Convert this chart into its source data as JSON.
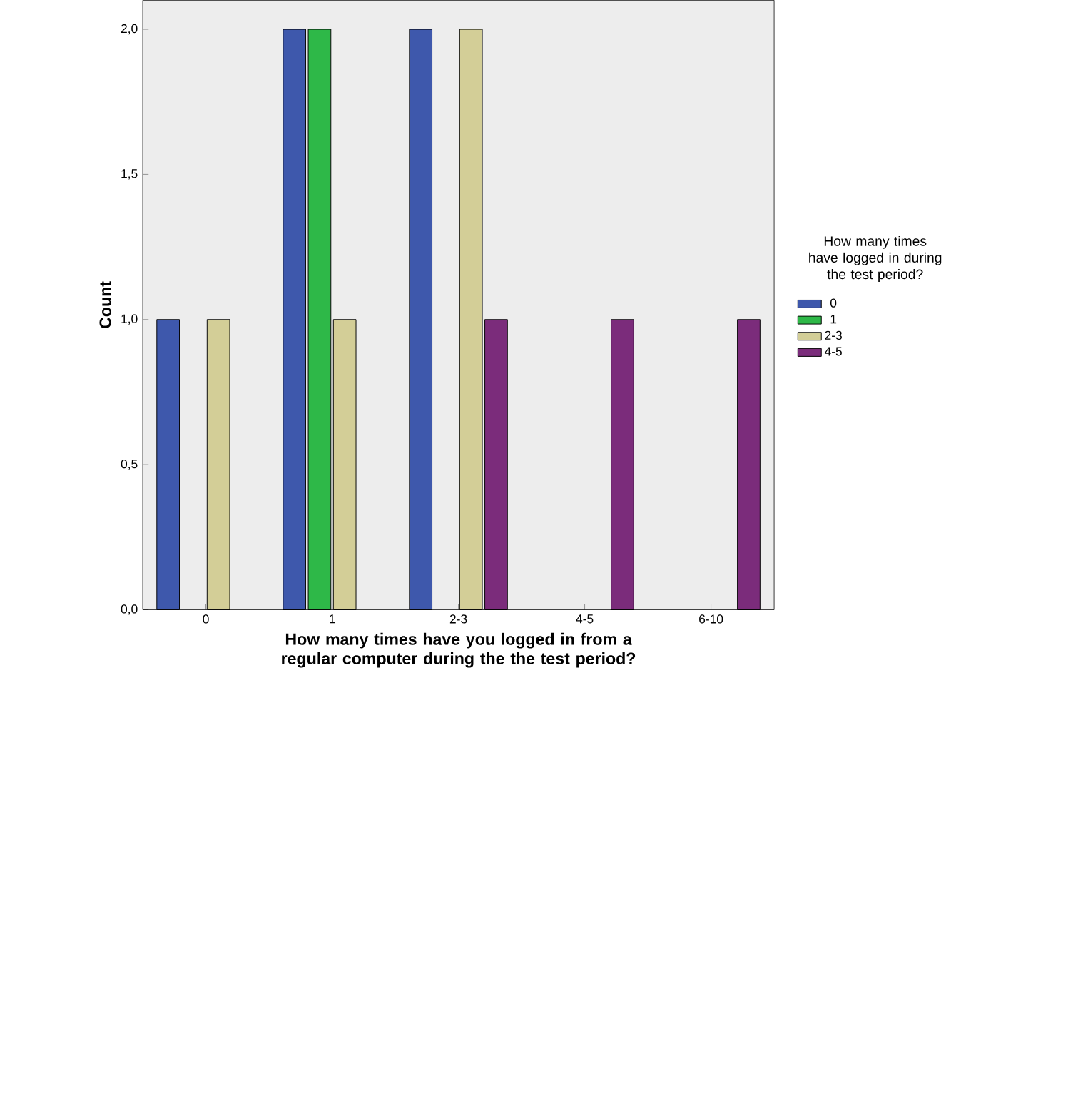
{
  "chart_data": {
    "type": "bar",
    "xlabel": "How many times have you logged in from a regular computer during the the test period?",
    "ylabel": "Count",
    "legend_title": "How many times have logged in during the test period?",
    "categories": [
      "0",
      "1",
      "2-3",
      "4-5",
      "6-10"
    ],
    "series": [
      {
        "name": "0",
        "color": "#3e58ac",
        "values": [
          1,
          2,
          2,
          null,
          null
        ]
      },
      {
        "name": "1",
        "color": "#2eb848",
        "values": [
          null,
          2,
          null,
          null,
          null
        ]
      },
      {
        "name": "2-3",
        "color": "#d3ce97",
        "values": [
          1,
          1,
          2,
          null,
          null
        ]
      },
      {
        "name": "4-5",
        "color": "#7b2c7b",
        "values": [
          null,
          null,
          1,
          1,
          1
        ]
      }
    ],
    "ylim": [
      0,
      2.1
    ],
    "yticks": [
      {
        "value": 0,
        "label": "0,0"
      },
      {
        "value": 0.5,
        "label": "0,5"
      },
      {
        "value": 1,
        "label": "1,0"
      },
      {
        "value": 1.5,
        "label": "1,5"
      },
      {
        "value": 2,
        "label": "2,0"
      }
    ],
    "grid": false,
    "legend": "right"
  }
}
